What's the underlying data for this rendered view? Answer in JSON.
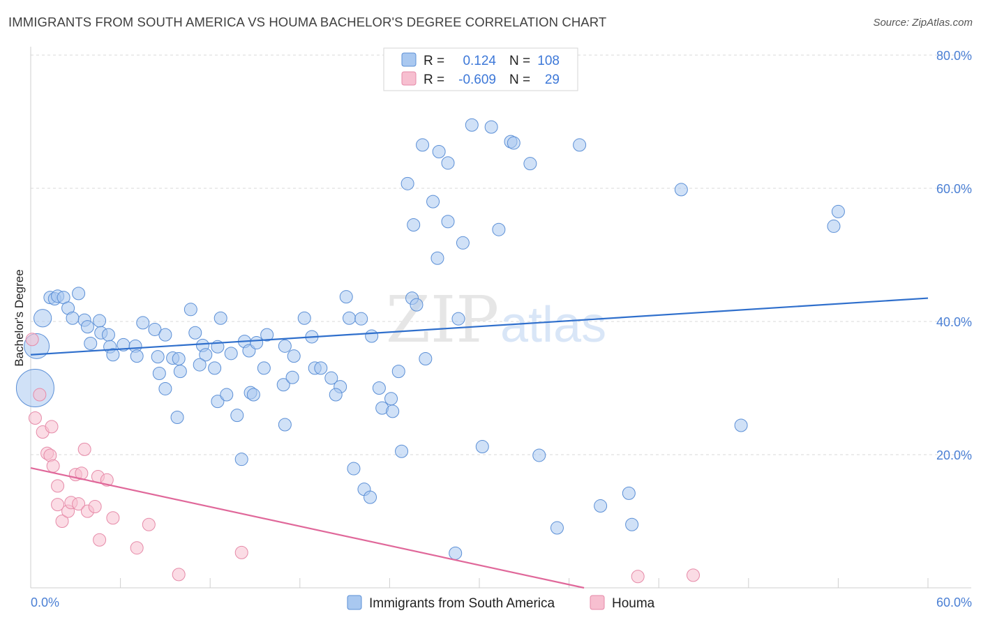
{
  "header": {
    "title": "IMMIGRANTS FROM SOUTH AMERICA VS HOUMA BACHELOR'S DEGREE CORRELATION CHART",
    "source": "Source: ZipAtlas.com"
  },
  "watermark": {
    "zip": "ZIP",
    "atlas": "atlas"
  },
  "legend": {
    "rows": [
      {
        "r_label": "R =",
        "r_value": "0.124",
        "n_label": "N =",
        "n_value": "108"
      },
      {
        "r_label": "R =",
        "r_value": "-0.609",
        "n_label": "N =",
        "n_value": "29"
      }
    ]
  },
  "bottom_legend": {
    "series1": "Immigrants from South America",
    "series2": "Houma"
  },
  "colors": {
    "blue_fill": "#a9c8f0",
    "blue_stroke": "#5b8fd6",
    "blue_line": "#2f6fcc",
    "pink_fill": "#f7bfd0",
    "pink_stroke": "#e68aa8",
    "pink_line": "#e0689a",
    "tick_text": "#4a7fd4",
    "grid": "#d9d9d9"
  },
  "chart_data": {
    "type": "scatter",
    "title": "IMMIGRANTS FROM SOUTH AMERICA VS HOUMA BACHELOR'S DEGREE CORRELATION CHART",
    "xlabel": "",
    "ylabel": "Bachelor's Degree",
    "xlim": [
      0,
      60
    ],
    "ylim": [
      0,
      80
    ],
    "x_tick_labels": [
      "0.0%",
      "60.0%"
    ],
    "y_ticks": [
      20,
      40,
      60,
      80
    ],
    "y_tick_labels": [
      "20.0%",
      "40.0%",
      "60.0%",
      "80.0%"
    ],
    "grid": true,
    "legend_position": "top-center",
    "series": [
      {
        "name": "Immigrants from South America",
        "r": 0.124,
        "n": 108,
        "trend": {
          "x": [
            0,
            60
          ],
          "y": [
            35.0,
            43.5
          ]
        },
        "points": [
          [
            0.3,
            30.0,
            3
          ],
          [
            0.4,
            36.3,
            2
          ],
          [
            0.8,
            40.5,
            1.4
          ],
          [
            1.3,
            43.6,
            1
          ],
          [
            1.6,
            43.4,
            1
          ],
          [
            1.8,
            43.8,
            1
          ],
          [
            2.2,
            43.6,
            1
          ],
          [
            3.2,
            44.2,
            1
          ],
          [
            2.5,
            42.0,
            1
          ],
          [
            2.8,
            40.5,
            1
          ],
          [
            3.6,
            40.2,
            1
          ],
          [
            4.6,
            40.1,
            1
          ],
          [
            3.8,
            39.2,
            1
          ],
          [
            4.7,
            38.3,
            1
          ],
          [
            5.2,
            38.0,
            1
          ],
          [
            4.0,
            36.7,
            1
          ],
          [
            5.3,
            36.2,
            1
          ],
          [
            6.2,
            36.5,
            1
          ],
          [
            7.5,
            39.8,
            1
          ],
          [
            8.3,
            38.8,
            1
          ],
          [
            9.0,
            38.0,
            1
          ],
          [
            5.5,
            35.0,
            1
          ],
          [
            7.0,
            36.3,
            1
          ],
          [
            7.1,
            34.8,
            1
          ],
          [
            8.5,
            34.7,
            1
          ],
          [
            9.5,
            34.5,
            1
          ],
          [
            9.9,
            34.4,
            1
          ],
          [
            10.7,
            41.8,
            1
          ],
          [
            11.0,
            38.3,
            1
          ],
          [
            11.5,
            36.4,
            1
          ],
          [
            12.5,
            36.2,
            1
          ],
          [
            11.7,
            35.0,
            1
          ],
          [
            10.0,
            32.5,
            1
          ],
          [
            8.6,
            32.2,
            1
          ],
          [
            11.3,
            33.5,
            1
          ],
          [
            12.3,
            33.0,
            1
          ],
          [
            12.5,
            28.0,
            1
          ],
          [
            13.1,
            29.0,
            1
          ],
          [
            9.0,
            29.9,
            1
          ],
          [
            9.8,
            25.6,
            1
          ],
          [
            12.7,
            40.5,
            1
          ],
          [
            13.4,
            35.2,
            1
          ],
          [
            13.8,
            25.9,
            1
          ],
          [
            14.3,
            37.0,
            1
          ],
          [
            14.6,
            35.6,
            1
          ],
          [
            15.1,
            36.8,
            1
          ],
          [
            15.8,
            38.0,
            1
          ],
          [
            17.0,
            36.3,
            1
          ],
          [
            17.6,
            34.8,
            1
          ],
          [
            15.6,
            33.0,
            1
          ],
          [
            16.9,
            30.5,
            1
          ],
          [
            17.5,
            31.6,
            1
          ],
          [
            14.7,
            29.3,
            1
          ],
          [
            14.9,
            29.0,
            1
          ],
          [
            17.0,
            24.5,
            1
          ],
          [
            14.1,
            19.3,
            1
          ],
          [
            18.3,
            40.5,
            1
          ],
          [
            18.8,
            37.7,
            1
          ],
          [
            19.0,
            33.0,
            1
          ],
          [
            19.4,
            33.0,
            1
          ],
          [
            20.1,
            31.5,
            1
          ],
          [
            20.7,
            30.2,
            1
          ],
          [
            20.4,
            29.0,
            1
          ],
          [
            21.1,
            43.7,
            1
          ],
          [
            21.3,
            40.5,
            1
          ],
          [
            22.1,
            40.4,
            1
          ],
          [
            21.6,
            17.9,
            1
          ],
          [
            22.3,
            14.8,
            1
          ],
          [
            22.7,
            13.6,
            1
          ],
          [
            22.8,
            37.8,
            1
          ],
          [
            23.3,
            30.0,
            1
          ],
          [
            23.5,
            27.0,
            1
          ],
          [
            24.1,
            28.4,
            1
          ],
          [
            24.2,
            26.5,
            1
          ],
          [
            24.6,
            32.5,
            1
          ],
          [
            24.8,
            20.5,
            1
          ],
          [
            25.2,
            60.7,
            1
          ],
          [
            25.5,
            43.5,
            1
          ],
          [
            25.8,
            42.5,
            1
          ],
          [
            26.2,
            66.5,
            1
          ],
          [
            26.4,
            34.4,
            1
          ],
          [
            26.9,
            58.0,
            1
          ],
          [
            25.6,
            54.5,
            1
          ],
          [
            27.3,
            65.5,
            1
          ],
          [
            27.2,
            49.5,
            1
          ],
          [
            27.9,
            55.0,
            1
          ],
          [
            27.9,
            63.8,
            1
          ],
          [
            28.6,
            40.4,
            1
          ],
          [
            28.9,
            51.8,
            1
          ],
          [
            28.4,
            5.2,
            1
          ],
          [
            29.5,
            69.5,
            1
          ],
          [
            30.2,
            21.2,
            1
          ],
          [
            30.8,
            69.2,
            1
          ],
          [
            31.3,
            53.8,
            1
          ],
          [
            32.1,
            67.0,
            1
          ],
          [
            32.3,
            66.8,
            1
          ],
          [
            33.4,
            63.7,
            1
          ],
          [
            34.0,
            19.9,
            1
          ],
          [
            35.2,
            9.0,
            1
          ],
          [
            36.7,
            66.5,
            1
          ],
          [
            38.1,
            12.3,
            1
          ],
          [
            40.0,
            14.2,
            1
          ],
          [
            40.2,
            9.5,
            1
          ],
          [
            43.5,
            59.8,
            1
          ],
          [
            47.5,
            24.4,
            1
          ],
          [
            53.7,
            54.3,
            1
          ],
          [
            54.0,
            56.5,
            1
          ]
        ]
      },
      {
        "name": "Houma",
        "r": -0.609,
        "n": 29,
        "trend": {
          "x": [
            0,
            37
          ],
          "y": [
            18.0,
            0.0
          ]
        },
        "points": [
          [
            0.1,
            37.3,
            1
          ],
          [
            0.6,
            29.0,
            1
          ],
          [
            0.3,
            25.5,
            1
          ],
          [
            0.8,
            23.4,
            1
          ],
          [
            1.1,
            20.2,
            1
          ],
          [
            1.3,
            19.9,
            1
          ],
          [
            1.4,
            24.2,
            1
          ],
          [
            1.5,
            18.3,
            1
          ],
          [
            1.8,
            15.3,
            1
          ],
          [
            1.8,
            12.5,
            1
          ],
          [
            2.1,
            10.0,
            1
          ],
          [
            2.5,
            11.5,
            1
          ],
          [
            2.7,
            12.8,
            1
          ],
          [
            3.0,
            17.0,
            1
          ],
          [
            3.2,
            12.6,
            1
          ],
          [
            3.4,
            17.2,
            1
          ],
          [
            3.6,
            20.8,
            1
          ],
          [
            3.8,
            11.5,
            1
          ],
          [
            4.3,
            12.2,
            1
          ],
          [
            4.5,
            16.7,
            1
          ],
          [
            4.6,
            7.2,
            1
          ],
          [
            5.1,
            16.2,
            1
          ],
          [
            5.5,
            10.5,
            1
          ],
          [
            7.1,
            6.0,
            1
          ],
          [
            7.9,
            9.5,
            1
          ],
          [
            9.9,
            2.0,
            1
          ],
          [
            14.1,
            5.3,
            1
          ],
          [
            40.6,
            1.7,
            1
          ],
          [
            44.3,
            1.9,
            1
          ]
        ]
      }
    ]
  }
}
